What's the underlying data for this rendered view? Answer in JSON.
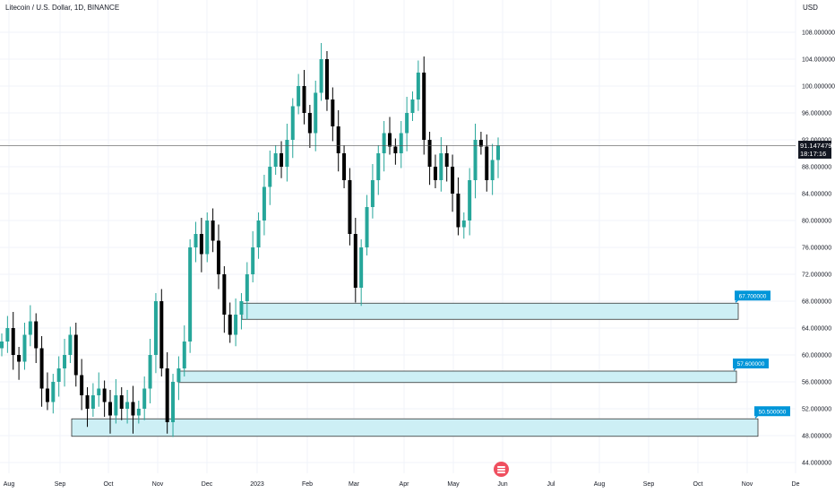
{
  "header": {
    "title": "Litecoin / U.S. Dollar, 1D, BINANCE",
    "currency": "USD"
  },
  "price_badge": {
    "price": "91.147479",
    "countdown": "18:17:16"
  },
  "chart_data": {
    "type": "candlestick",
    "title": "Litecoin / U.S. Dollar, 1D, BINANCE",
    "ylabel": "USD",
    "ylim": [
      42,
      111
    ],
    "y_ticks": [
      44,
      48,
      52,
      56,
      60,
      64,
      68,
      72,
      76,
      80,
      84,
      88,
      92,
      96,
      100,
      104,
      108
    ],
    "y_tick_labels": [
      "44.000000",
      "48.000000",
      "52.000000",
      "56.000000",
      "60.000000",
      "64.000000",
      "68.000000",
      "72.000000",
      "76.000000",
      "80.000000",
      "84.000000",
      "88.000000",
      "92.000000",
      "96.000000",
      "100.000000",
      "104.000000",
      "108.000000"
    ],
    "x_tick_labels": [
      "Aug",
      "Sep",
      "Oct",
      "Nov",
      "Dec",
      "2023",
      "Feb",
      "Mar",
      "Apr",
      "May",
      "Jun",
      "Jul",
      "Aug",
      "Sep",
      "Oct",
      "Nov",
      "De"
    ],
    "current_price": 91.147479,
    "colors": {
      "up": "#26a69a",
      "down": "#000000",
      "zone_fill": "#cdeff5",
      "zone_border": "#333333",
      "label_bg": "#0096d9"
    },
    "close_path": [
      [
        "Aug",
        62
      ],
      [
        "Aug",
        64
      ],
      [
        "Aug",
        60
      ],
      [
        "Aug",
        59
      ],
      [
        "Aug",
        63
      ],
      [
        "Aug",
        65
      ],
      [
        "Aug",
        61
      ],
      [
        "Aug",
        55
      ],
      [
        "Sep",
        53
      ],
      [
        "Sep",
        56
      ],
      [
        "Sep",
        58
      ],
      [
        "Sep",
        60
      ],
      [
        "Sep",
        63
      ],
      [
        "Sep",
        57
      ],
      [
        "Sep",
        54
      ],
      [
        "Sep",
        52
      ],
      [
        "Sep",
        54
      ],
      [
        "Oct",
        55
      ],
      [
        "Oct",
        53
      ],
      [
        "Oct",
        51
      ],
      [
        "Oct",
        54
      ],
      [
        "Oct",
        52
      ],
      [
        "Oct",
        53
      ],
      [
        "Oct",
        51
      ],
      [
        "Oct",
        52
      ],
      [
        "Nov",
        55
      ],
      [
        "Nov",
        60
      ],
      [
        "Nov",
        68
      ],
      [
        "Nov",
        58
      ],
      [
        "Nov",
        50
      ],
      [
        "Nov",
        56
      ],
      [
        "Nov",
        58
      ],
      [
        "Nov",
        62
      ],
      [
        "Dec",
        76
      ],
      [
        "Dec",
        78
      ],
      [
        "Dec",
        75
      ],
      [
        "Dec",
        80
      ],
      [
        "Dec",
        77
      ],
      [
        "Dec",
        72
      ],
      [
        "Dec",
        66
      ],
      [
        "Dec",
        63
      ],
      [
        "Dec",
        66
      ],
      [
        "Dec",
        68
      ],
      [
        "2023",
        72
      ],
      [
        "2023",
        76
      ],
      [
        "2023",
        80
      ],
      [
        "2023",
        85
      ],
      [
        "2023",
        88
      ],
      [
        "2023",
        90
      ],
      [
        "2023",
        88
      ],
      [
        "2023",
        92
      ],
      [
        "Feb",
        97
      ],
      [
        "Feb",
        100
      ],
      [
        "Feb",
        96
      ],
      [
        "Feb",
        93
      ],
      [
        "Feb",
        99
      ],
      [
        "Feb",
        104
      ],
      [
        "Feb",
        98
      ],
      [
        "Feb",
        94
      ],
      [
        "Mar",
        90
      ],
      [
        "Mar",
        86
      ],
      [
        "Mar",
        78
      ],
      [
        "Mar",
        70
      ],
      [
        "Mar",
        76
      ],
      [
        "Mar",
        82
      ],
      [
        "Mar",
        86
      ],
      [
        "Mar",
        90
      ],
      [
        "Apr",
        93
      ],
      [
        "Apr",
        91
      ],
      [
        "Apr",
        90
      ],
      [
        "Apr",
        93
      ],
      [
        "Apr",
        96
      ],
      [
        "Apr",
        98
      ],
      [
        "Apr",
        102
      ],
      [
        "Apr",
        92
      ],
      [
        "May",
        88
      ],
      [
        "May",
        86
      ],
      [
        "May",
        90
      ],
      [
        "May",
        88
      ],
      [
        "May",
        84
      ],
      [
        "May",
        79
      ],
      [
        "May",
        80
      ],
      [
        "May",
        86
      ],
      [
        "May",
        92
      ],
      [
        "May",
        91
      ],
      [
        "May",
        86
      ],
      [
        "Jun",
        89
      ],
      [
        "Jun",
        91.15
      ]
    ],
    "zones": [
      {
        "label": "67.700000",
        "top": 67.7,
        "bottom": 65.3,
        "from": "Dec",
        "to": "Oct"
      },
      {
        "label": "57.600000",
        "top": 57.6,
        "bottom": 55.9,
        "from": "Nov",
        "to": "Oct"
      },
      {
        "label": "50.500000",
        "top": 50.5,
        "bottom": 47.9,
        "from": "Sep",
        "to": "Nov"
      }
    ]
  }
}
